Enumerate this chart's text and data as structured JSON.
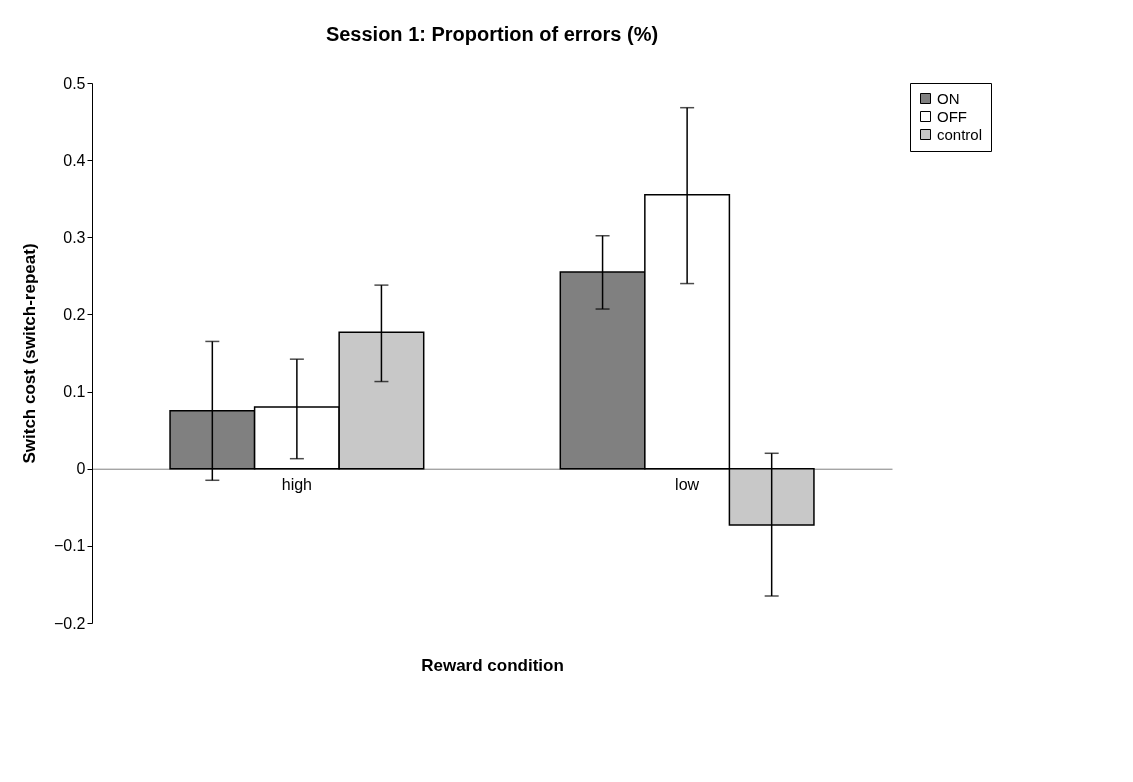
{
  "chart_data": {
    "type": "bar",
    "title": "Session 1: Proportion of errors (%)",
    "xlabel": "Reward condition",
    "ylabel": "Switch cost (switch-repeat)",
    "categories": [
      "high",
      "low"
    ],
    "series": [
      {
        "name": "ON",
        "color": "#808080",
        "values": [
          0.075,
          0.255
        ],
        "errors": [
          [
            -0.015,
            0.165
          ],
          [
            0.207,
            0.302
          ]
        ]
      },
      {
        "name": "OFF",
        "color": "#ffffff",
        "values": [
          0.08,
          0.355
        ],
        "errors": [
          [
            0.013,
            0.142
          ],
          [
            0.24,
            0.468
          ]
        ]
      },
      {
        "name": "control",
        "color": "#c8c8c8",
        "values": [
          0.177,
          -0.073
        ],
        "errors": [
          [
            0.113,
            0.238
          ],
          [
            -0.165,
            0.02
          ]
        ]
      }
    ],
    "ylim": [
      -0.2,
      0.5
    ],
    "yticks": [
      -0.2,
      -0.1,
      0,
      0.1,
      0.2,
      0.3,
      0.4,
      0.5
    ],
    "grid": false,
    "legend": "right"
  }
}
